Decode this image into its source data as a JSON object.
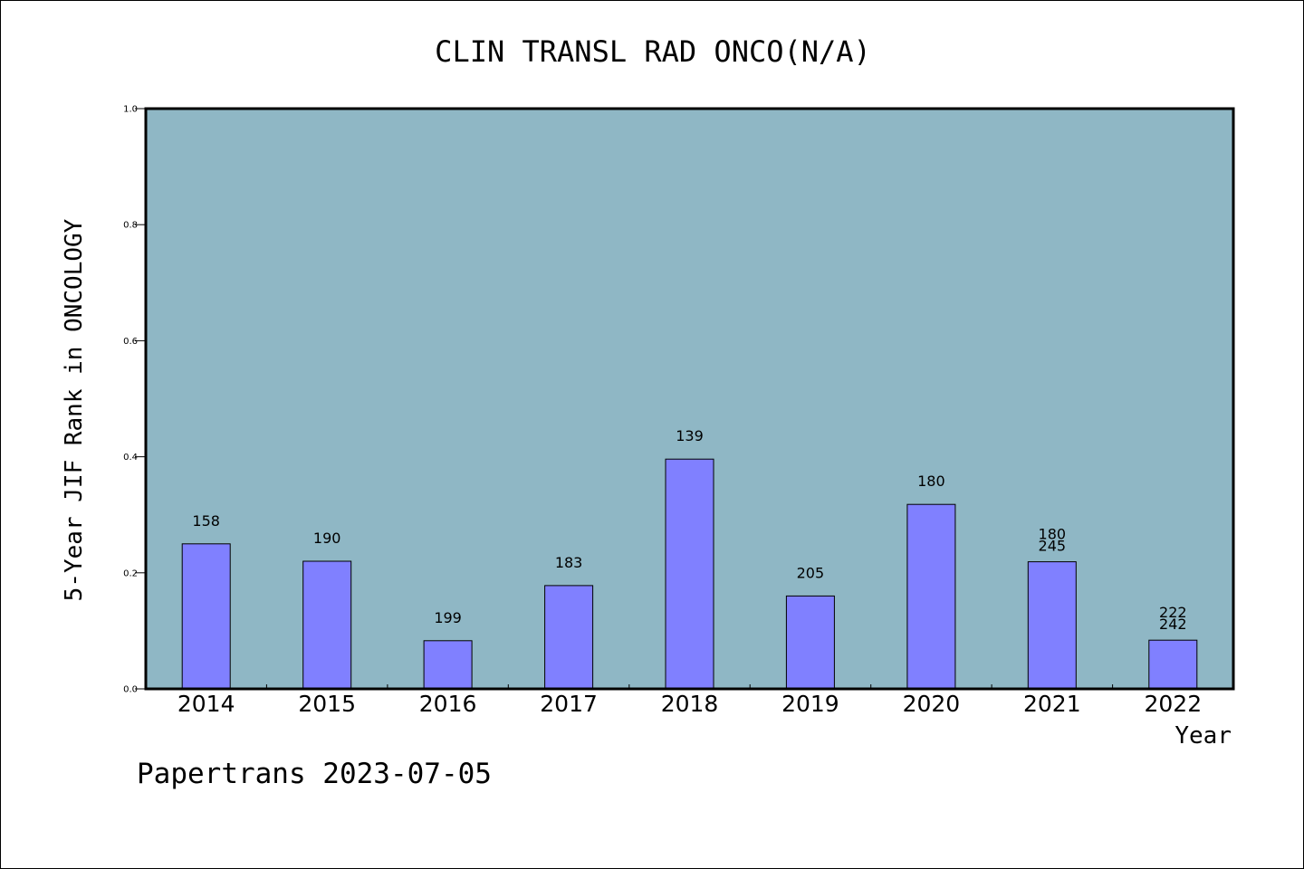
{
  "chart_data": {
    "type": "bar",
    "title": "CLIN TRANSL RAD ONCO(N/A)",
    "xlabel": "Year",
    "ylabel": "5-Year JIF Rank in ONCOLOGY",
    "categories": [
      "2014",
      "2015",
      "2016",
      "2017",
      "2018",
      "2019",
      "2020",
      "2021",
      "2022"
    ],
    "values": [
      0.25,
      0.22,
      0.083,
      0.178,
      0.396,
      0.16,
      0.318,
      0.219,
      0.084
    ],
    "bar_labels": [
      [
        "158"
      ],
      [
        "190"
      ],
      [
        "199"
      ],
      [
        "183"
      ],
      [
        "139"
      ],
      [
        "205"
      ],
      [
        "180"
      ],
      [
        "180",
        "245"
      ],
      [
        "222",
        "242"
      ]
    ],
    "ylim": [
      0,
      1.0
    ],
    "yticks": [
      "0.0",
      "0.2",
      "0.4",
      "0.6",
      "0.8",
      "1.0"
    ],
    "grid": false,
    "colors": {
      "plot_background": "#8fb7c5",
      "bar_fill": "#8080ff",
      "bar_stroke": "#000000"
    }
  },
  "footer": {
    "text": "Papertrans 2023-07-05"
  }
}
